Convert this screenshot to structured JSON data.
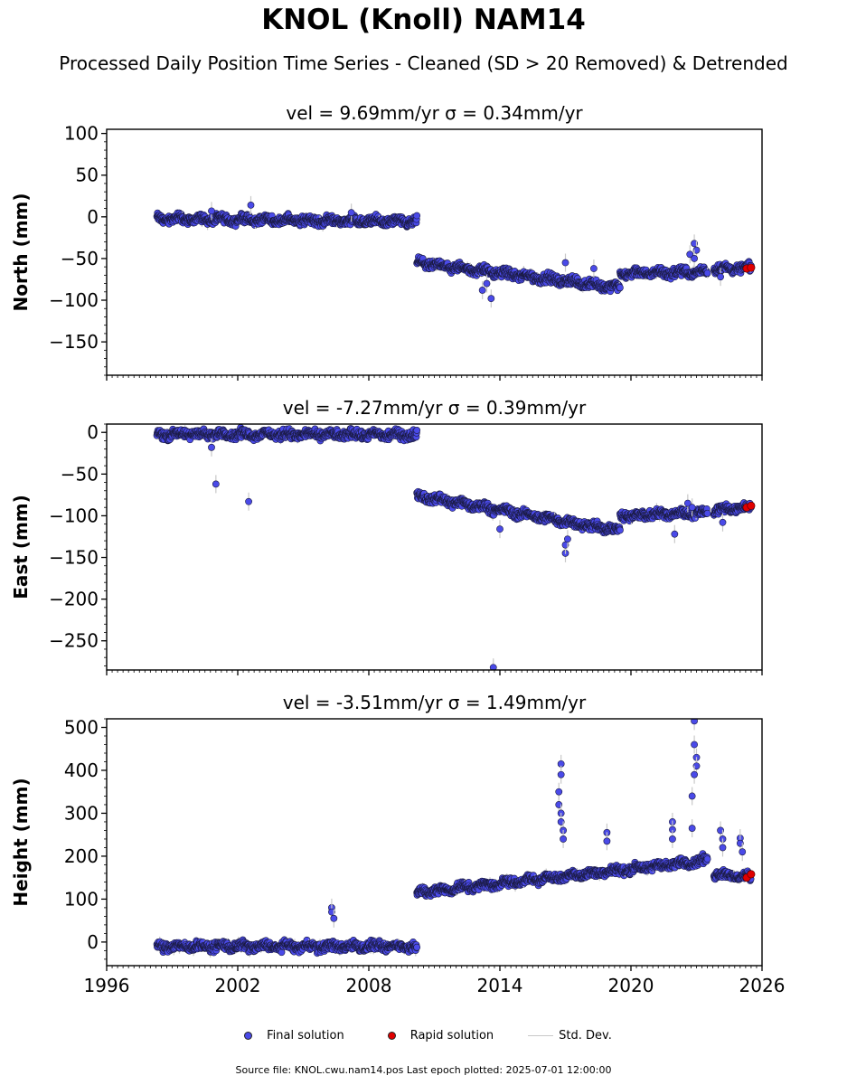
{
  "figure": {
    "title": "KNOL (Knoll) NAM14",
    "subtitle": "Processed Daily Position Time Series - Cleaned (SD > 20 Removed) & Detrended",
    "footer": "Source file: KNOL.cwu.nam14.pos  Last epoch plotted: 2025-07-01 12:00:00"
  },
  "legend": {
    "final_label": "Final solution",
    "rapid_label": "Rapid solution",
    "std_label": "Std. Dev.",
    "final_color": "#4a4ae8",
    "rapid_color": "#e00000",
    "std_color": "#c8c8c8"
  },
  "chart_data": [
    {
      "type": "scatter",
      "title": "vel = 9.69mm/yr   σ = 0.34mm/yr",
      "ylabel": "North (mm)",
      "xlim": [
        1996,
        2026
      ],
      "ylim": [
        -190,
        105
      ],
      "yticks": [
        100,
        50,
        0,
        -50,
        -100,
        -150
      ],
      "ytick_labels": [
        "100",
        "50",
        "0",
        "−50",
        "−100",
        "−150"
      ],
      "segments": [
        {
          "x": [
            1998.3,
            2010.2
          ],
          "y": [
            -2,
            -6
          ]
        },
        {
          "x": [
            2010.2,
            2019.5
          ],
          "y": [
            -55,
            -85
          ]
        },
        {
          "x": [
            2019.5,
            2023.5
          ],
          "y": [
            -68,
            -66
          ]
        },
        {
          "x": [
            2023.8,
            2025.5
          ],
          "y": [
            -62,
            -62
          ]
        }
      ],
      "outliers": [
        [
          2000.8,
          7
        ],
        [
          2002.6,
          14
        ],
        [
          2007.2,
          5
        ],
        [
          2013.2,
          -88
        ],
        [
          2013.4,
          -80
        ],
        [
          2013.6,
          -98
        ],
        [
          2017.0,
          -55
        ],
        [
          2018.3,
          -62
        ],
        [
          2022.7,
          -45
        ],
        [
          2022.9,
          -32
        ],
        [
          2023.0,
          -40
        ],
        [
          2022.9,
          -50
        ],
        [
          2024.1,
          -72
        ]
      ],
      "rapid": [
        [
          2025.3,
          -62
        ],
        [
          2025.5,
          -61
        ]
      ]
    },
    {
      "type": "scatter",
      "title": "vel = -7.27mm/yr   σ = 0.39mm/yr",
      "ylabel": "East (mm)",
      "xlim": [
        1996,
        2026
      ],
      "ylim": [
        -285,
        10
      ],
      "yticks": [
        0,
        -50,
        -100,
        -150,
        -200,
        -250
      ],
      "ytick_labels": [
        "0",
        "−50",
        "−100",
        "−150",
        "−200",
        "−250"
      ],
      "segments": [
        {
          "x": [
            1998.3,
            2010.2
          ],
          "y": [
            -2,
            -3
          ]
        },
        {
          "x": [
            2010.2,
            2019.5
          ],
          "y": [
            -76,
            -118
          ]
        },
        {
          "x": [
            2019.5,
            2023.5
          ],
          "y": [
            -100,
            -96
          ]
        },
        {
          "x": [
            2023.8,
            2025.5
          ],
          "y": [
            -93,
            -90
          ]
        }
      ],
      "outliers": [
        [
          2000.8,
          -18
        ],
        [
          2001.0,
          -62
        ],
        [
          2002.5,
          -83
        ],
        [
          2013.7,
          -282
        ],
        [
          2014.0,
          -116
        ],
        [
          2017.0,
          -145
        ],
        [
          2017.0,
          -135
        ],
        [
          2017.1,
          -128
        ],
        [
          2022.0,
          -122
        ],
        [
          2022.6,
          -85
        ],
        [
          2022.8,
          -90
        ],
        [
          2024.2,
          -108
        ]
      ],
      "rapid": [
        [
          2025.3,
          -90
        ],
        [
          2025.5,
          -88
        ]
      ]
    },
    {
      "type": "scatter",
      "title": "vel = -3.51mm/yr   σ = 1.49mm/yr",
      "ylabel": "Height (mm)",
      "xlabel": "",
      "xlim": [
        1996,
        2026
      ],
      "ylim": [
        -55,
        520
      ],
      "yticks": [
        500,
        400,
        300,
        200,
        100,
        0
      ],
      "ytick_labels": [
        "500",
        "400",
        "300",
        "200",
        "100",
        "0"
      ],
      "xticks": [
        1996,
        2002,
        2008,
        2014,
        2020,
        2026
      ],
      "xtick_labels": [
        "1996",
        "2002",
        "2008",
        "2014",
        "2020",
        "2026"
      ],
      "segments": [
        {
          "x": [
            1998.3,
            2010.2
          ],
          "y": [
            -10,
            -10
          ]
        },
        {
          "x": [
            2010.2,
            2023.5
          ],
          "y": [
            115,
            190
          ]
        },
        {
          "x": [
            2023.8,
            2025.5
          ],
          "y": [
            160,
            150
          ]
        }
      ],
      "outliers": [
        [
          2006.3,
          80
        ],
        [
          2006.3,
          70
        ],
        [
          2006.4,
          55
        ],
        [
          2016.8,
          415
        ],
        [
          2016.8,
          390
        ],
        [
          2016.7,
          350
        ],
        [
          2016.7,
          320
        ],
        [
          2016.8,
          300
        ],
        [
          2016.8,
          280
        ],
        [
          2016.9,
          260
        ],
        [
          2016.9,
          240
        ],
        [
          2018.9,
          255
        ],
        [
          2018.9,
          235
        ],
        [
          2021.9,
          280
        ],
        [
          2021.9,
          262
        ],
        [
          2021.9,
          240
        ],
        [
          2022.9,
          515
        ],
        [
          2022.9,
          460
        ],
        [
          2023.0,
          430
        ],
        [
          2023.0,
          410
        ],
        [
          2022.9,
          390
        ],
        [
          2022.8,
          340
        ],
        [
          2022.8,
          265
        ],
        [
          2024.1,
          260
        ],
        [
          2024.2,
          240
        ],
        [
          2024.2,
          220
        ],
        [
          2025.0,
          242
        ],
        [
          2025.0,
          230
        ],
        [
          2025.1,
          210
        ]
      ],
      "rapid": [
        [
          2025.3,
          150
        ],
        [
          2025.5,
          158
        ]
      ]
    }
  ]
}
